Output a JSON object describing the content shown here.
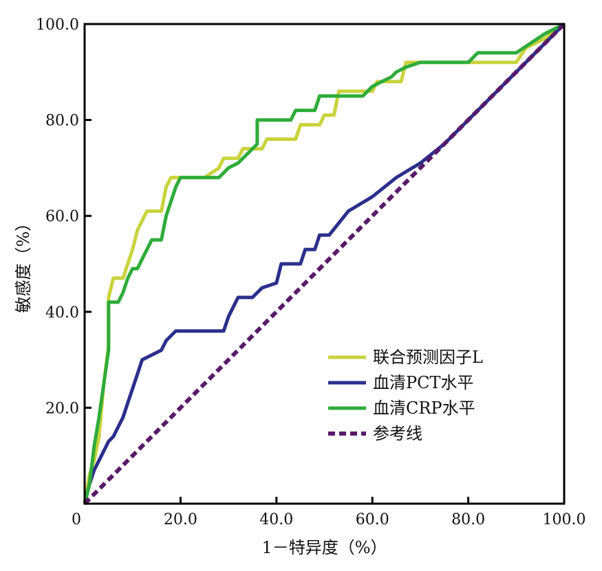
{
  "chart_data": {
    "type": "line",
    "xlabel": "1－特异度（%）",
    "ylabel": "敏感度（%）",
    "xlim": [
      0,
      100
    ],
    "ylim": [
      0,
      100
    ],
    "x_ticks": [
      "0",
      "20.0",
      "40.0",
      "60.0",
      "80.0",
      "100.0"
    ],
    "y_ticks": [
      "20.0",
      "40.0",
      "60.0",
      "80.0",
      "100.0"
    ],
    "grid": false,
    "legend_position": "bottom-right",
    "series": [
      {
        "name": "联合预测因子L",
        "color": "#c9d33c",
        "style": "solid",
        "points": [
          [
            0,
            0
          ],
          [
            1,
            6
          ],
          [
            2,
            9
          ],
          [
            3,
            14
          ],
          [
            4,
            25
          ],
          [
            5,
            33
          ],
          [
            5,
            43
          ],
          [
            6,
            47
          ],
          [
            8,
            47
          ],
          [
            9,
            50
          ],
          [
            10,
            53
          ],
          [
            11,
            57
          ],
          [
            12,
            59
          ],
          [
            13,
            61
          ],
          [
            16,
            61
          ],
          [
            17,
            66
          ],
          [
            18,
            68
          ],
          [
            25,
            68
          ],
          [
            28,
            70
          ],
          [
            29,
            72
          ],
          [
            32,
            72
          ],
          [
            33,
            74
          ],
          [
            37,
            74
          ],
          [
            38,
            76
          ],
          [
            44,
            76
          ],
          [
            45,
            79
          ],
          [
            49,
            79
          ],
          [
            50,
            81
          ],
          [
            52,
            81
          ],
          [
            53,
            86
          ],
          [
            60,
            86
          ],
          [
            61,
            88
          ],
          [
            66,
            88
          ],
          [
            67,
            92
          ],
          [
            90,
            92
          ],
          [
            92,
            95
          ],
          [
            96,
            97
          ],
          [
            100,
            100
          ]
        ]
      },
      {
        "name": "血清PCT水平",
        "color": "#2b2f8c",
        "style": "solid",
        "points": [
          [
            0,
            0
          ],
          [
            1,
            4
          ],
          [
            2,
            7
          ],
          [
            3,
            9
          ],
          [
            4,
            11
          ],
          [
            5,
            13
          ],
          [
            6,
            14
          ],
          [
            7,
            16
          ],
          [
            8,
            18
          ],
          [
            9,
            21
          ],
          [
            10,
            24
          ],
          [
            11,
            27
          ],
          [
            12,
            30
          ],
          [
            14,
            31
          ],
          [
            16,
            32
          ],
          [
            17,
            34
          ],
          [
            19,
            36
          ],
          [
            29,
            36
          ],
          [
            30,
            39
          ],
          [
            32,
            43
          ],
          [
            35,
            43
          ],
          [
            37,
            45
          ],
          [
            40,
            46
          ],
          [
            41,
            50
          ],
          [
            45,
            50
          ],
          [
            46,
            53
          ],
          [
            48,
            53
          ],
          [
            49,
            56
          ],
          [
            51,
            56
          ],
          [
            55,
            61
          ],
          [
            60,
            64
          ],
          [
            65,
            68
          ],
          [
            70,
            71
          ],
          [
            75,
            75
          ],
          [
            80,
            80
          ],
          [
            90,
            90
          ],
          [
            100,
            100
          ]
        ]
      },
      {
        "name": "血清CRP水平",
        "color": "#2fac3a",
        "style": "solid",
        "points": [
          [
            0,
            0
          ],
          [
            1,
            4
          ],
          [
            2,
            12
          ],
          [
            3,
            18
          ],
          [
            4,
            25
          ],
          [
            5,
            32
          ],
          [
            5,
            42
          ],
          [
            7,
            42
          ],
          [
            8,
            44
          ],
          [
            9,
            47
          ],
          [
            10,
            49
          ],
          [
            11,
            49
          ],
          [
            12,
            51
          ],
          [
            13,
            53
          ],
          [
            14,
            55
          ],
          [
            16,
            55
          ],
          [
            17,
            60
          ],
          [
            18,
            63
          ],
          [
            19,
            66
          ],
          [
            20,
            68
          ],
          [
            28,
            68
          ],
          [
            30,
            70
          ],
          [
            32,
            71
          ],
          [
            34,
            73
          ],
          [
            36,
            75
          ],
          [
            36,
            80
          ],
          [
            43,
            80
          ],
          [
            44,
            82
          ],
          [
            48,
            82
          ],
          [
            49,
            85
          ],
          [
            58,
            85
          ],
          [
            60,
            87
          ],
          [
            62,
            88
          ],
          [
            64,
            89
          ],
          [
            65,
            90
          ],
          [
            67,
            91
          ],
          [
            70,
            92
          ],
          [
            80,
            92
          ],
          [
            82,
            94
          ],
          [
            90,
            94
          ],
          [
            96,
            98
          ],
          [
            100,
            100
          ]
        ]
      },
      {
        "name": "参考线",
        "color": "#5a1a6a",
        "style": "dashed",
        "points": [
          [
            0,
            0
          ],
          [
            100,
            100
          ]
        ]
      }
    ]
  }
}
